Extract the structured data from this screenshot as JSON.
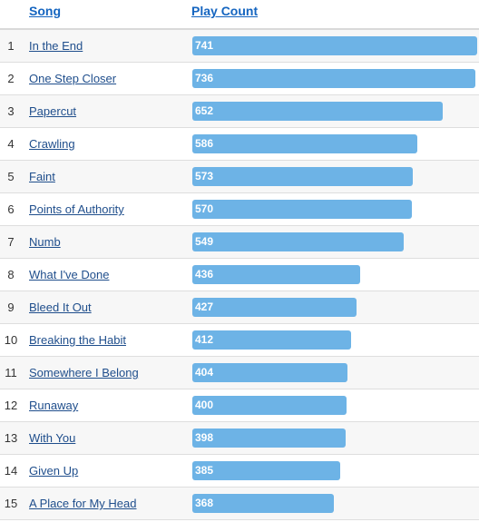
{
  "header": {
    "song_label": "Song",
    "count_label": "Play Count"
  },
  "max_value": 741,
  "bar_color": "#6db3e6",
  "rows": [
    {
      "rank": "1",
      "song": "In the End",
      "count": 741
    },
    {
      "rank": "2",
      "song": "One Step Closer",
      "count": 736
    },
    {
      "rank": "3",
      "song": "Papercut",
      "count": 652
    },
    {
      "rank": "4",
      "song": "Crawling",
      "count": 586
    },
    {
      "rank": "5",
      "song": "Faint",
      "count": 573
    },
    {
      "rank": "6",
      "song": "Points of Authority",
      "count": 570
    },
    {
      "rank": "7",
      "song": "Numb",
      "count": 549
    },
    {
      "rank": "8",
      "song": "What I've Done",
      "count": 436
    },
    {
      "rank": "9",
      "song": "Bleed It Out",
      "count": 427
    },
    {
      "rank": "10",
      "song": "Breaking the Habit",
      "count": 412
    },
    {
      "rank": "11",
      "song": "Somewhere I Belong",
      "count": 404
    },
    {
      "rank": "12",
      "song": "Runaway",
      "count": 400
    },
    {
      "rank": "13",
      "song": "With You",
      "count": 398
    },
    {
      "rank": "14",
      "song": "Given Up",
      "count": 385
    },
    {
      "rank": "15",
      "song": "A Place for My Head",
      "count": 368
    }
  ]
}
